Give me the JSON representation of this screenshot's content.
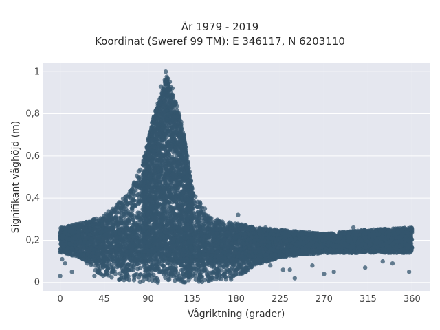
{
  "chart_data": {
    "type": "scatter",
    "title": "År 1979 - 2019",
    "subtitle": "Koordinat (Sweref 99 TM): E 346117, N 6203110",
    "xlabel": "Vågriktning (grader)",
    "ylabel": "Signifikant våghöjd (m)",
    "xlim": [
      -18,
      378
    ],
    "ylim": [
      -0.04,
      1.04
    ],
    "xticks": [
      0,
      45,
      90,
      135,
      180,
      225,
      270,
      315,
      360
    ],
    "xtick_labels": [
      "0",
      "45",
      "90",
      "135",
      "180",
      "225",
      "270",
      "315",
      "360"
    ],
    "yticks": [
      0,
      0.2,
      0.4,
      0.6,
      0.8,
      1
    ],
    "ytick_labels": [
      "0",
      "0,2",
      "0,4",
      "0,6",
      "0,8",
      "1"
    ],
    "grid": true,
    "marker_color": "#34566d",
    "background_color": "#e5e7ef",
    "envelope": {
      "x": [
        0,
        20,
        45,
        70,
        85,
        95,
        105,
        110,
        115,
        125,
        135,
        150,
        165,
        180,
        200,
        225,
        270,
        315,
        360
      ],
      "max": [
        0.26,
        0.28,
        0.32,
        0.42,
        0.58,
        0.78,
        0.92,
        0.99,
        0.92,
        0.74,
        0.45,
        0.32,
        0.29,
        0.28,
        0.26,
        0.25,
        0.23,
        0.25,
        0.26
      ],
      "min": [
        0.14,
        0.12,
        0.02,
        0.0,
        0.0,
        0.0,
        0.0,
        0.0,
        0.0,
        0.0,
        0.0,
        0.0,
        0.0,
        0.02,
        0.08,
        0.12,
        0.14,
        0.14,
        0.14
      ]
    },
    "points": [
      [
        108,
        1.0
      ],
      [
        107,
        0.96
      ],
      [
        108,
        0.95
      ],
      [
        103,
        0.93
      ],
      [
        106,
        0.9
      ],
      [
        96,
        0.73
      ],
      [
        130,
        0.6
      ],
      [
        127,
        0.52
      ],
      [
        120,
        0.48
      ],
      [
        78,
        0.46
      ],
      [
        68,
        0.41
      ],
      [
        148,
        0.35
      ],
      [
        182,
        0.32
      ],
      [
        210,
        0.26
      ],
      [
        255,
        0.24
      ],
      [
        300,
        0.26
      ],
      [
        330,
        0.24
      ],
      [
        350,
        0.25
      ],
      [
        0,
        0.03
      ],
      [
        12,
        0.05
      ],
      [
        35,
        0.03
      ],
      [
        240,
        0.02
      ],
      [
        357,
        0.05
      ],
      [
        280,
        0.05
      ],
      [
        270,
        0.04
      ],
      [
        312,
        0.07
      ],
      [
        235,
        0.06
      ],
      [
        190,
        0.05
      ],
      [
        228,
        0.06
      ],
      [
        2,
        0.11
      ],
      [
        5,
        0.09
      ],
      [
        330,
        0.1
      ],
      [
        340,
        0.09
      ],
      [
        258,
        0.08
      ],
      [
        215,
        0.08
      ]
    ]
  }
}
